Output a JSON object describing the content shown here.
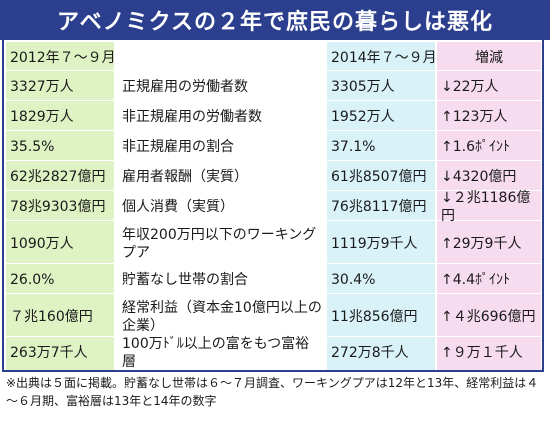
{
  "title": "アベノミクスの２年で庶民の暮らしは悪化",
  "headers": {
    "y2012": "2012年７～９月",
    "y2014": "2014年７～９月",
    "change": "増減"
  },
  "rows": [
    {
      "v2012": "3327万人",
      "label": "正規雇用の労働者数",
      "v2014": "3305万人",
      "change": "↓22万人"
    },
    {
      "v2012": "1829万人",
      "label": "非正規雇用の労働者数",
      "v2014": "1952万人",
      "change": "↑123万人"
    },
    {
      "v2012": "35.5%",
      "label": "非正規雇用の割合",
      "v2014": "37.1%",
      "change": "↑1.6ﾎﾟｲﾝﾄ"
    },
    {
      "v2012": "62兆2827億円",
      "label": "雇用者報酬（実質）",
      "v2014": "61兆8507億円",
      "change": "↓4320億円"
    },
    {
      "v2012": "78兆9303億円",
      "label": "個人消費（実質）",
      "v2014": "76兆8117億円",
      "change": "↓２兆1186億円"
    },
    {
      "v2012": "1090万人",
      "label": "年収200万円以下のワーキングプア",
      "v2014": "1119万9千人",
      "change": "↑29万9千人"
    },
    {
      "v2012": "26.0%",
      "label": "貯蓄なし世帯の割合",
      "v2014": "30.4%",
      "change": "↑4.4ﾎﾟｲﾝﾄ"
    },
    {
      "v2012": "７兆160億円",
      "label": "経常利益（資本金10億円以上の企業）",
      "v2014": "11兆856億円",
      "change": "↑４兆696億円"
    },
    {
      "v2012": "263万7千人",
      "label": "100万ﾄﾞﾙ以上の富をもつ富裕層",
      "v2014": "272万8千人",
      "change": "↑９万１千人"
    }
  ],
  "footnote": "※出典は５面に掲載。貯蓄なし世帯は６～７月調査、ワーキングプアは12年と13年、経常利益は４～６月期、富裕層は13年と14年の数字",
  "colors": {
    "header_bg": "#2b3f8e",
    "col_2012": "#dff2c3",
    "col_2014": "#d8f2f8",
    "col_change": "#f6dcee"
  }
}
